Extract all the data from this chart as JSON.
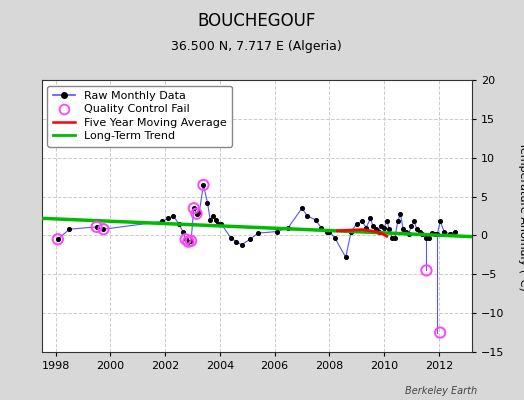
{
  "title": "BOUCHEGOUF",
  "subtitle": "36.500 N, 7.717 E (Algeria)",
  "ylabel": "Temperature Anomaly (°C)",
  "credit": "Berkeley Earth",
  "xlim": [
    1997.5,
    2013.2
  ],
  "ylim": [
    -15,
    20
  ],
  "yticks": [
    -15,
    -10,
    -5,
    0,
    5,
    10,
    15,
    20
  ],
  "xticks": [
    1998,
    2000,
    2002,
    2004,
    2006,
    2008,
    2010,
    2012
  ],
  "bg_color": "#d8d8d8",
  "plot_bg_color": "#ffffff",
  "raw_data": [
    [
      1998.08,
      -0.5
    ],
    [
      1998.5,
      0.8
    ],
    [
      1999.5,
      1.1
    ],
    [
      1999.75,
      0.8
    ],
    [
      2001.9,
      1.8
    ],
    [
      2002.1,
      2.2
    ],
    [
      2002.3,
      2.5
    ],
    [
      2002.5,
      1.5
    ],
    [
      2002.65,
      0.5
    ],
    [
      2002.75,
      -0.5
    ],
    [
      2002.85,
      -0.8
    ],
    [
      2002.95,
      -0.7
    ],
    [
      2003.05,
      3.5
    ],
    [
      2003.15,
      2.8
    ],
    [
      2003.25,
      3.0
    ],
    [
      2003.4,
      6.5
    ],
    [
      2003.55,
      4.2
    ],
    [
      2003.65,
      2.0
    ],
    [
      2003.75,
      2.5
    ],
    [
      2003.85,
      2.0
    ],
    [
      2003.95,
      1.5
    ],
    [
      2004.05,
      1.5
    ],
    [
      2004.4,
      -0.3
    ],
    [
      2004.6,
      -0.8
    ],
    [
      2004.8,
      -1.2
    ],
    [
      2005.1,
      -0.5
    ],
    [
      2005.4,
      0.3
    ],
    [
      2006.1,
      0.5
    ],
    [
      2006.5,
      1.0
    ],
    [
      2007.0,
      3.5
    ],
    [
      2007.2,
      2.5
    ],
    [
      2007.5,
      2.0
    ],
    [
      2007.7,
      1.0
    ],
    [
      2007.9,
      0.5
    ],
    [
      2008.0,
      0.5
    ],
    [
      2008.2,
      -0.3
    ],
    [
      2008.6,
      -2.8
    ],
    [
      2008.8,
      0.5
    ],
    [
      2009.0,
      1.5
    ],
    [
      2009.2,
      1.8
    ],
    [
      2009.35,
      1.0
    ],
    [
      2009.5,
      2.2
    ],
    [
      2009.6,
      1.2
    ],
    [
      2009.7,
      0.8
    ],
    [
      2009.8,
      0.5
    ],
    [
      2009.9,
      1.2
    ],
    [
      2010.0,
      1.0
    ],
    [
      2010.1,
      1.8
    ],
    [
      2010.2,
      0.8
    ],
    [
      2010.3,
      -0.3
    ],
    [
      2010.4,
      -0.3
    ],
    [
      2010.5,
      1.8
    ],
    [
      2010.6,
      2.8
    ],
    [
      2010.7,
      0.8
    ],
    [
      2010.8,
      0.5
    ],
    [
      2010.9,
      0.2
    ],
    [
      2011.0,
      1.2
    ],
    [
      2011.1,
      1.8
    ],
    [
      2011.2,
      0.8
    ],
    [
      2011.3,
      0.5
    ],
    [
      2011.4,
      0.2
    ],
    [
      2011.55,
      -0.3
    ],
    [
      2011.65,
      -0.3
    ],
    [
      2011.75,
      0.3
    ],
    [
      2011.85,
      0.2
    ],
    [
      2011.95,
      0.2
    ],
    [
      2012.05,
      1.8
    ],
    [
      2012.2,
      0.5
    ],
    [
      2012.4,
      0.2
    ],
    [
      2012.6,
      0.5
    ]
  ],
  "qc_fail_points": [
    [
      1998.08,
      -0.5
    ],
    [
      1999.5,
      1.1
    ],
    [
      1999.75,
      0.8
    ],
    [
      2002.75,
      -0.5
    ],
    [
      2002.85,
      -0.8
    ],
    [
      2002.95,
      -0.7
    ],
    [
      2003.05,
      3.5
    ],
    [
      2003.15,
      2.8
    ],
    [
      2003.4,
      6.5
    ],
    [
      2011.55,
      -4.5
    ],
    [
      2012.05,
      -12.5
    ]
  ],
  "moving_avg": [
    [
      2008.3,
      0.6
    ],
    [
      2008.6,
      0.65
    ],
    [
      2008.9,
      0.7
    ],
    [
      2009.2,
      0.75
    ],
    [
      2009.5,
      0.6
    ],
    [
      2009.8,
      0.4
    ],
    [
      2010.0,
      0.1
    ],
    [
      2010.1,
      -0.1
    ]
  ],
  "trend_x": [
    1997.5,
    2013.2
  ],
  "trend_y": [
    2.2,
    -0.15
  ],
  "raw_line_color": "#5555ff",
  "raw_dot_color": "#000000",
  "qc_color": "#ff44ff",
  "moving_avg_color": "#ff0000",
  "trend_color": "#00bb00",
  "title_fontsize": 12,
  "subtitle_fontsize": 9,
  "label_fontsize": 8,
  "tick_fontsize": 8,
  "credit_fontsize": 7
}
